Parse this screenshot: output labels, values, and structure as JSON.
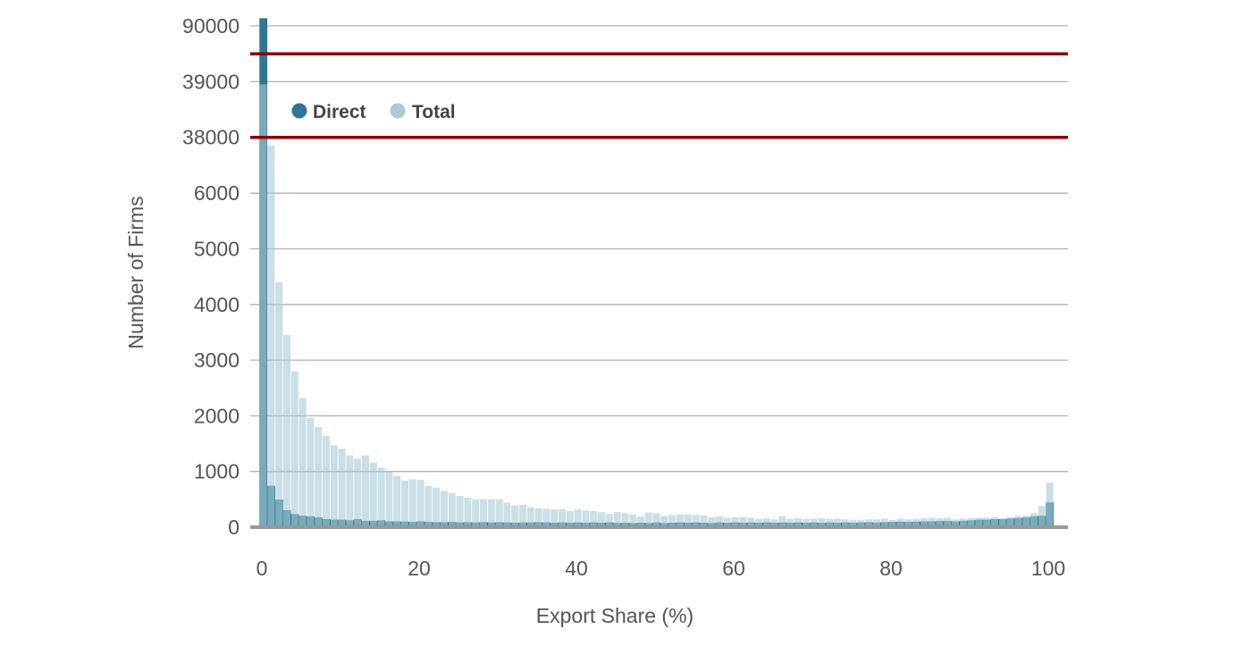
{
  "chart_data": {
    "type": "bar",
    "title": "",
    "xlabel": "Export Share (%)",
    "ylabel": "Number of Firms",
    "x_ticks": [
      0,
      20,
      40,
      60,
      80,
      100
    ],
    "y_ticks": [
      0,
      1000,
      2000,
      3000,
      4000,
      5000,
      6000,
      38000,
      39000,
      90000
    ],
    "axis_breaks": [
      38000,
      39500
    ],
    "xlim": [
      0,
      100
    ],
    "grid": true,
    "legend_position": "top-left",
    "colors": {
      "Direct": "#2f7792",
      "Total": "#a9cbd6",
      "break": "#8b0000"
    },
    "x": [
      0,
      1,
      2,
      3,
      4,
      5,
      6,
      7,
      8,
      9,
      10,
      11,
      12,
      13,
      14,
      15,
      16,
      17,
      18,
      19,
      20,
      21,
      22,
      23,
      24,
      25,
      26,
      27,
      28,
      29,
      30,
      31,
      32,
      33,
      34,
      35,
      36,
      37,
      38,
      39,
      40,
      41,
      42,
      43,
      44,
      45,
      46,
      47,
      48,
      49,
      50,
      51,
      52,
      53,
      54,
      55,
      56,
      57,
      58,
      59,
      60,
      61,
      62,
      63,
      64,
      65,
      66,
      67,
      68,
      69,
      70,
      71,
      72,
      73,
      74,
      75,
      76,
      77,
      78,
      79,
      80,
      81,
      82,
      83,
      84,
      85,
      86,
      87,
      88,
      89,
      90,
      91,
      92,
      93,
      94,
      95,
      96,
      97,
      98,
      99,
      100
    ],
    "series": [
      {
        "name": "Direct",
        "values": [
          90130,
          740,
          490,
          300,
          230,
          200,
          190,
          170,
          140,
          130,
          130,
          120,
          140,
          110,
          110,
          120,
          100,
          100,
          95,
          90,
          100,
          90,
          85,
          85,
          90,
          80,
          85,
          80,
          85,
          80,
          85,
          80,
          75,
          80,
          80,
          85,
          80,
          75,
          80,
          75,
          80,
          75,
          80,
          75,
          80,
          70,
          75,
          70,
          75,
          70,
          80,
          70,
          75,
          80,
          75,
          80,
          75,
          70,
          80,
          75,
          80,
          75,
          80,
          75,
          80,
          75,
          80,
          75,
          80,
          75,
          80,
          75,
          80,
          75,
          80,
          75,
          80,
          85,
          80,
          85,
          90,
          95,
          90,
          95,
          100,
          100,
          105,
          110,
          100,
          110,
          120,
          130,
          130,
          140,
          140,
          150,
          160,
          170,
          190,
          200,
          440
        ]
      },
      {
        "name": "Total",
        "values": [
          38950,
          37850,
          4400,
          3450,
          2800,
          2320,
          1960,
          1800,
          1640,
          1470,
          1410,
          1290,
          1230,
          1290,
          1160,
          1070,
          1000,
          920,
          840,
          860,
          850,
          740,
          710,
          650,
          610,
          560,
          530,
          500,
          500,
          500,
          500,
          440,
          390,
          400,
          360,
          340,
          330,
          320,
          320,
          290,
          320,
          300,
          290,
          270,
          240,
          270,
          250,
          230,
          190,
          260,
          250,
          200,
          220,
          230,
          230,
          220,
          210,
          180,
          190,
          170,
          180,
          180,
          170,
          150,
          160,
          140,
          200,
          150,
          160,
          150,
          150,
          160,
          150,
          150,
          140,
          130,
          130,
          140,
          140,
          150,
          130,
          150,
          140,
          150,
          160,
          170,
          160,
          170,
          140,
          150,
          160,
          170,
          170,
          180,
          160,
          180,
          200,
          210,
          250,
          380,
          800
        ]
      }
    ]
  }
}
